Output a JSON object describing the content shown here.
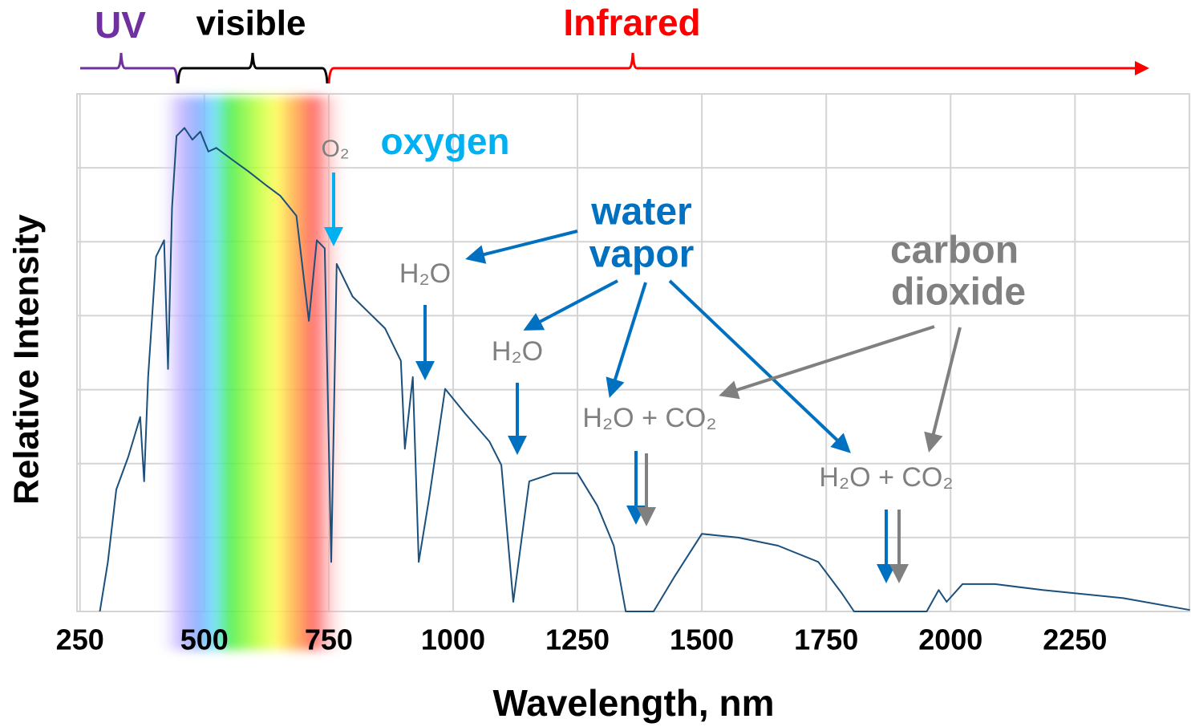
{
  "chart_data": {
    "type": "line",
    "xlabel": "Wavelength, nm",
    "ylabel": "Relative Intensity",
    "xlim": [
      244,
      2480
    ],
    "xticks": [
      250,
      500,
      750,
      1000,
      1250,
      1500,
      1750,
      2000,
      2250
    ],
    "ylim": [
      0,
      7
    ],
    "ygrid": [
      1,
      2,
      3,
      4,
      5,
      6,
      7
    ],
    "grid": true,
    "series": [
      {
        "name": "Relative Intensity",
        "color": "#1b4f7c",
        "x": [
          290,
          306,
          323,
          347,
          371,
          379,
          387,
          403,
          419,
          427,
          435,
          444,
          460,
          476,
          492,
          508,
          524,
          556,
          589,
          621,
          653,
          685,
          710,
          726,
          742,
          755,
          766,
          798,
          831,
          863,
          895,
          903,
          919,
          931,
          952,
          984,
          1024,
          1073,
          1097,
          1121,
          1153,
          1202,
          1250,
          1290,
          1323,
          1347,
          1403,
          1444,
          1500,
          1573,
          1653,
          1734,
          1782,
          1806,
          1952,
          1976,
          1992,
          2024,
          2089,
          2185,
          2347,
          2481
        ],
        "values": [
          0,
          0.67,
          1.65,
          2.09,
          2.63,
          1.76,
          3.17,
          4.8,
          5.02,
          3.28,
          5.46,
          6.43,
          6.54,
          6.38,
          6.49,
          6.22,
          6.27,
          6.11,
          5.95,
          5.78,
          5.62,
          5.35,
          3.93,
          5.02,
          4.91,
          0.67,
          4.7,
          4.26,
          4.04,
          3.83,
          3.39,
          2.2,
          3.17,
          0.67,
          1.54,
          3.01,
          2.68,
          2.3,
          1.98,
          0.13,
          1.76,
          1.87,
          1.87,
          1.43,
          0.89,
          0,
          0,
          0.46,
          1.05,
          1.0,
          0.89,
          0.67,
          0.24,
          0,
          0,
          0.29,
          0.13,
          0.37,
          0.37,
          0.29,
          0.18,
          0.02
        ]
      }
    ],
    "annotations": [
      "UV",
      "visible",
      "Infrared",
      "oxygen",
      "water",
      "vapor",
      "carbon",
      "dioxide",
      "O₂",
      "H₂O",
      "H₂O",
      "H₂O + CO₂",
      "H₂O + CO₂"
    ]
  }
}
